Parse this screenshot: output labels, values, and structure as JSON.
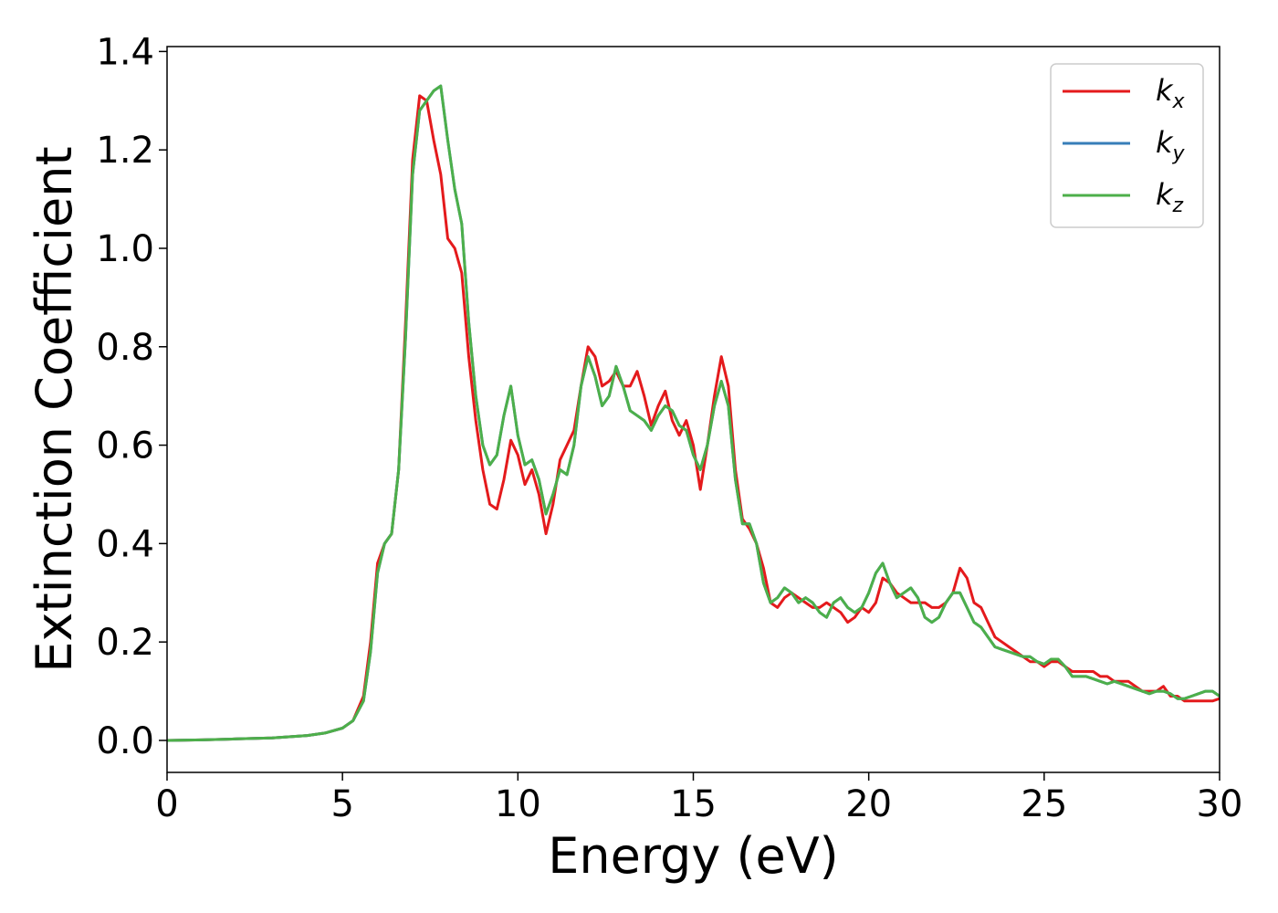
{
  "chart_data": {
    "type": "line",
    "xlabel": "Energy (eV)",
    "ylabel": "Extinction Coefficient",
    "xlim": [
      0,
      30
    ],
    "ylim": [
      -0.065,
      1.41
    ],
    "xticks": [
      0,
      5,
      10,
      15,
      20,
      25,
      30
    ],
    "xtick_labels": [
      "0",
      "5",
      "10",
      "15",
      "20",
      "25",
      "30"
    ],
    "yticks": [
      0.0,
      0.2,
      0.4,
      0.6,
      0.8,
      1.0,
      1.2,
      1.4
    ],
    "ytick_labels": [
      "0.0",
      "0.2",
      "0.4",
      "0.6",
      "0.8",
      "1.0",
      "1.2",
      "1.4"
    ],
    "grid": false,
    "legend_position": "top-right",
    "series": [
      {
        "name": "k_x",
        "label_base": "k",
        "label_sub": "x",
        "color": "#e41a1c",
        "x": [
          0,
          1,
          2,
          3,
          4,
          4.5,
          5,
          5.3,
          5.6,
          5.8,
          6.0,
          6.2,
          6.4,
          6.6,
          6.8,
          7.0,
          7.2,
          7.4,
          7.6,
          7.8,
          8.0,
          8.2,
          8.4,
          8.6,
          8.8,
          9.0,
          9.2,
          9.4,
          9.6,
          9.8,
          10.0,
          10.2,
          10.4,
          10.6,
          10.8,
          11.0,
          11.2,
          11.4,
          11.6,
          11.8,
          12.0,
          12.2,
          12.4,
          12.6,
          12.8,
          13.0,
          13.2,
          13.4,
          13.6,
          13.8,
          14.0,
          14.2,
          14.4,
          14.6,
          14.8,
          15.0,
          15.2,
          15.4,
          15.6,
          15.8,
          16.0,
          16.2,
          16.4,
          16.6,
          16.8,
          17.0,
          17.2,
          17.4,
          17.6,
          17.8,
          18.0,
          18.2,
          18.4,
          18.6,
          18.8,
          19.0,
          19.2,
          19.4,
          19.6,
          19.8,
          20.0,
          20.2,
          20.4,
          20.6,
          20.8,
          21.0,
          21.2,
          21.4,
          21.6,
          21.8,
          22.0,
          22.2,
          22.4,
          22.6,
          22.8,
          23.0,
          23.2,
          23.4,
          23.6,
          23.8,
          24.0,
          24.2,
          24.4,
          24.6,
          24.8,
          25.0,
          25.2,
          25.4,
          25.6,
          25.8,
          26.0,
          26.2,
          26.4,
          26.6,
          26.8,
          27.0,
          27.2,
          27.4,
          27.6,
          27.8,
          28.0,
          28.2,
          28.4,
          28.6,
          28.8,
          29.0,
          29.2,
          29.4,
          29.6,
          29.8,
          30.0
        ],
        "y": [
          0.0,
          0.001,
          0.003,
          0.005,
          0.01,
          0.015,
          0.025,
          0.04,
          0.09,
          0.2,
          0.36,
          0.4,
          0.42,
          0.55,
          0.85,
          1.18,
          1.31,
          1.3,
          1.22,
          1.15,
          1.02,
          1.0,
          0.95,
          0.78,
          0.65,
          0.55,
          0.48,
          0.47,
          0.53,
          0.61,
          0.58,
          0.52,
          0.55,
          0.5,
          0.42,
          0.48,
          0.57,
          0.6,
          0.63,
          0.72,
          0.8,
          0.78,
          0.72,
          0.73,
          0.75,
          0.72,
          0.72,
          0.75,
          0.7,
          0.64,
          0.68,
          0.71,
          0.65,
          0.62,
          0.65,
          0.6,
          0.51,
          0.6,
          0.7,
          0.78,
          0.72,
          0.55,
          0.45,
          0.43,
          0.4,
          0.35,
          0.28,
          0.27,
          0.29,
          0.3,
          0.29,
          0.28,
          0.27,
          0.27,
          0.28,
          0.27,
          0.26,
          0.24,
          0.25,
          0.27,
          0.26,
          0.28,
          0.33,
          0.32,
          0.3,
          0.29,
          0.28,
          0.28,
          0.28,
          0.27,
          0.27,
          0.28,
          0.3,
          0.35,
          0.33,
          0.28,
          0.27,
          0.24,
          0.21,
          0.2,
          0.19,
          0.18,
          0.17,
          0.16,
          0.16,
          0.15,
          0.16,
          0.16,
          0.15,
          0.14,
          0.14,
          0.14,
          0.14,
          0.13,
          0.13,
          0.12,
          0.12,
          0.12,
          0.11,
          0.1,
          0.1,
          0.1,
          0.11,
          0.09,
          0.09,
          0.08,
          0.08,
          0.08,
          0.08,
          0.08,
          0.085
        ]
      },
      {
        "name": "k_y",
        "label_base": "k",
        "label_sub": "y",
        "color": "#377eb8",
        "x": [
          0,
          1,
          2,
          3,
          4,
          4.5,
          5,
          5.3,
          5.6,
          5.8,
          6.0,
          6.2,
          6.4,
          6.6,
          6.8,
          7.0,
          7.2,
          7.4,
          7.6,
          7.8,
          8.0,
          8.2,
          8.4,
          8.6,
          8.8,
          9.0,
          9.2,
          9.4,
          9.6,
          9.8,
          10.0,
          10.2,
          10.4,
          10.6,
          10.8,
          11.0,
          11.2,
          11.4,
          11.6,
          11.8,
          12.0,
          12.2,
          12.4,
          12.6,
          12.8,
          13.0,
          13.2,
          13.4,
          13.6,
          13.8,
          14.0,
          14.2,
          14.4,
          14.6,
          14.8,
          15.0,
          15.2,
          15.4,
          15.6,
          15.8,
          16.0,
          16.2,
          16.4,
          16.6,
          16.8,
          17.0,
          17.2,
          17.4,
          17.6,
          17.8,
          18.0,
          18.2,
          18.4,
          18.6,
          18.8,
          19.0,
          19.2,
          19.4,
          19.6,
          19.8,
          20.0,
          20.2,
          20.4,
          20.6,
          20.8,
          21.0,
          21.2,
          21.4,
          21.6,
          21.8,
          22.0,
          22.2,
          22.4,
          22.6,
          22.8,
          23.0,
          23.2,
          23.4,
          23.6,
          23.8,
          24.0,
          24.2,
          24.4,
          24.6,
          24.8,
          25.0,
          25.2,
          25.4,
          25.6,
          25.8,
          26.0,
          26.2,
          26.4,
          26.6,
          26.8,
          27.0,
          27.2,
          27.4,
          27.6,
          27.8,
          28.0,
          28.2,
          28.4,
          28.6,
          28.8,
          29.0,
          29.2,
          29.4,
          29.6,
          29.8,
          30.0
        ],
        "y": [
          0.0,
          0.001,
          0.003,
          0.005,
          0.01,
          0.015,
          0.025,
          0.04,
          0.08,
          0.18,
          0.34,
          0.4,
          0.42,
          0.55,
          0.82,
          1.15,
          1.28,
          1.3,
          1.32,
          1.33,
          1.22,
          1.12,
          1.05,
          0.85,
          0.7,
          0.6,
          0.56,
          0.58,
          0.66,
          0.72,
          0.62,
          0.56,
          0.57,
          0.53,
          0.46,
          0.5,
          0.55,
          0.54,
          0.6,
          0.72,
          0.78,
          0.74,
          0.68,
          0.7,
          0.76,
          0.72,
          0.67,
          0.66,
          0.65,
          0.63,
          0.66,
          0.68,
          0.67,
          0.64,
          0.63,
          0.58,
          0.55,
          0.6,
          0.68,
          0.73,
          0.68,
          0.53,
          0.44,
          0.44,
          0.4,
          0.32,
          0.28,
          0.29,
          0.31,
          0.3,
          0.28,
          0.29,
          0.28,
          0.26,
          0.25,
          0.28,
          0.29,
          0.27,
          0.26,
          0.27,
          0.3,
          0.34,
          0.36,
          0.32,
          0.29,
          0.3,
          0.31,
          0.29,
          0.25,
          0.24,
          0.25,
          0.28,
          0.3,
          0.3,
          0.27,
          0.24,
          0.23,
          0.21,
          0.19,
          0.185,
          0.18,
          0.175,
          0.17,
          0.17,
          0.16,
          0.155,
          0.165,
          0.165,
          0.15,
          0.13,
          0.13,
          0.13,
          0.125,
          0.12,
          0.115,
          0.12,
          0.115,
          0.11,
          0.105,
          0.1,
          0.095,
          0.1,
          0.1,
          0.095,
          0.085,
          0.085,
          0.09,
          0.095,
          0.1,
          0.1,
          0.09
        ]
      },
      {
        "name": "k_z",
        "label_base": "k",
        "label_sub": "z",
        "color": "#4daf4a",
        "x": [
          0,
          1,
          2,
          3,
          4,
          4.5,
          5,
          5.3,
          5.6,
          5.8,
          6.0,
          6.2,
          6.4,
          6.6,
          6.8,
          7.0,
          7.2,
          7.4,
          7.6,
          7.8,
          8.0,
          8.2,
          8.4,
          8.6,
          8.8,
          9.0,
          9.2,
          9.4,
          9.6,
          9.8,
          10.0,
          10.2,
          10.4,
          10.6,
          10.8,
          11.0,
          11.2,
          11.4,
          11.6,
          11.8,
          12.0,
          12.2,
          12.4,
          12.6,
          12.8,
          13.0,
          13.2,
          13.4,
          13.6,
          13.8,
          14.0,
          14.2,
          14.4,
          14.6,
          14.8,
          15.0,
          15.2,
          15.4,
          15.6,
          15.8,
          16.0,
          16.2,
          16.4,
          16.6,
          16.8,
          17.0,
          17.2,
          17.4,
          17.6,
          17.8,
          18.0,
          18.2,
          18.4,
          18.6,
          18.8,
          19.0,
          19.2,
          19.4,
          19.6,
          19.8,
          20.0,
          20.2,
          20.4,
          20.6,
          20.8,
          21.0,
          21.2,
          21.4,
          21.6,
          21.8,
          22.0,
          22.2,
          22.4,
          22.6,
          22.8,
          23.0,
          23.2,
          23.4,
          23.6,
          23.8,
          24.0,
          24.2,
          24.4,
          24.6,
          24.8,
          25.0,
          25.2,
          25.4,
          25.6,
          25.8,
          26.0,
          26.2,
          26.4,
          26.6,
          26.8,
          27.0,
          27.2,
          27.4,
          27.6,
          27.8,
          28.0,
          28.2,
          28.4,
          28.6,
          28.8,
          29.0,
          29.2,
          29.4,
          29.6,
          29.8,
          30.0
        ],
        "y": [
          0.0,
          0.001,
          0.003,
          0.005,
          0.01,
          0.015,
          0.025,
          0.04,
          0.08,
          0.18,
          0.34,
          0.4,
          0.42,
          0.55,
          0.82,
          1.15,
          1.28,
          1.3,
          1.32,
          1.33,
          1.22,
          1.12,
          1.05,
          0.85,
          0.7,
          0.6,
          0.56,
          0.58,
          0.66,
          0.72,
          0.62,
          0.56,
          0.57,
          0.53,
          0.46,
          0.5,
          0.55,
          0.54,
          0.6,
          0.72,
          0.78,
          0.74,
          0.68,
          0.7,
          0.76,
          0.72,
          0.67,
          0.66,
          0.65,
          0.63,
          0.66,
          0.68,
          0.67,
          0.64,
          0.63,
          0.58,
          0.55,
          0.6,
          0.68,
          0.73,
          0.68,
          0.53,
          0.44,
          0.44,
          0.4,
          0.32,
          0.28,
          0.29,
          0.31,
          0.3,
          0.28,
          0.29,
          0.28,
          0.26,
          0.25,
          0.28,
          0.29,
          0.27,
          0.26,
          0.27,
          0.3,
          0.34,
          0.36,
          0.32,
          0.29,
          0.3,
          0.31,
          0.29,
          0.25,
          0.24,
          0.25,
          0.28,
          0.3,
          0.3,
          0.27,
          0.24,
          0.23,
          0.21,
          0.19,
          0.185,
          0.18,
          0.175,
          0.17,
          0.17,
          0.16,
          0.155,
          0.165,
          0.165,
          0.15,
          0.13,
          0.13,
          0.13,
          0.125,
          0.12,
          0.115,
          0.12,
          0.115,
          0.11,
          0.105,
          0.1,
          0.095,
          0.1,
          0.1,
          0.095,
          0.085,
          0.085,
          0.09,
          0.095,
          0.1,
          0.1,
          0.09
        ]
      }
    ]
  }
}
